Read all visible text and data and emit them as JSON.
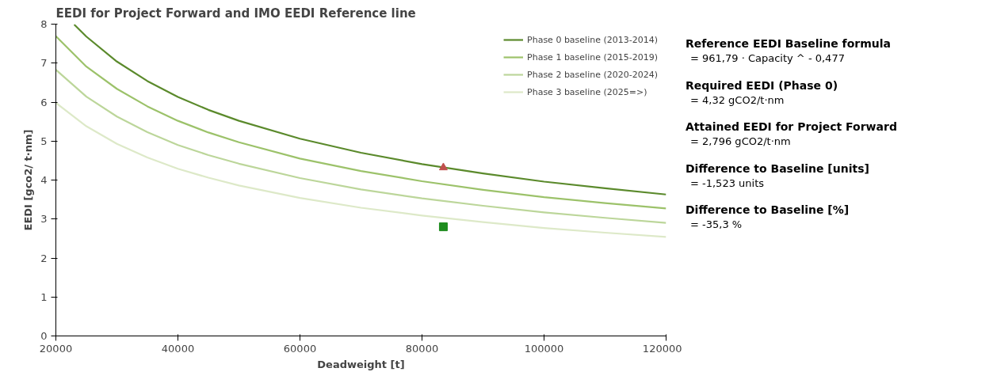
{
  "chart_data": {
    "type": "line",
    "title": "EEDI for Project Forward and IMO EEDI Reference line",
    "xlabel": "Deadweight [t]",
    "ylabel": "EEDI [gco2/ t·nm]",
    "xlim": [
      20000,
      120000
    ],
    "ylim": [
      0,
      8
    ],
    "xticks": [
      20000,
      40000,
      60000,
      80000,
      100000,
      120000
    ],
    "yticks": [
      0,
      1,
      2,
      3,
      4,
      5,
      6,
      7,
      8
    ],
    "grid": false,
    "legend": "top right",
    "series": [
      {
        "name": "Phase 0 baseline (2013-2014)",
        "color": "#5b8a2c",
        "x": [
          23000,
          25000,
          30000,
          35000,
          40000,
          45000,
          50000,
          60000,
          70000,
          80000,
          90000,
          100000,
          110000,
          120000
        ],
        "values": [
          7.99,
          7.68,
          7.04,
          6.54,
          6.13,
          5.8,
          5.52,
          5.06,
          4.7,
          4.41,
          4.17,
          3.96,
          3.79,
          3.63
        ]
      },
      {
        "name": "Phase 1 baseline (2015-2019)",
        "color": "#9cc26a",
        "x": [
          20000,
          25000,
          30000,
          35000,
          40000,
          45000,
          50000,
          60000,
          70000,
          80000,
          90000,
          100000,
          110000,
          120000
        ],
        "values": [
          7.69,
          6.91,
          6.34,
          5.89,
          5.52,
          5.22,
          4.97,
          4.55,
          4.23,
          3.97,
          3.75,
          3.56,
          3.41,
          3.27
        ]
      },
      {
        "name": "Phase 2 baseline (2020-2024)",
        "color": "#bcd69a",
        "x": [
          20000,
          25000,
          30000,
          35000,
          40000,
          45000,
          50000,
          60000,
          70000,
          80000,
          90000,
          100000,
          110000,
          120000
        ],
        "values": [
          6.83,
          6.14,
          5.63,
          5.23,
          4.9,
          4.64,
          4.42,
          4.05,
          3.76,
          3.53,
          3.34,
          3.17,
          3.03,
          2.9
        ]
      },
      {
        "name": "Phase 3 baseline (2025=>)",
        "color": "#dde9c8",
        "x": [
          20000,
          25000,
          30000,
          35000,
          40000,
          45000,
          50000,
          60000,
          70000,
          80000,
          90000,
          100000,
          110000,
          120000
        ],
        "values": [
          5.98,
          5.38,
          4.93,
          4.58,
          4.29,
          4.06,
          3.86,
          3.54,
          3.29,
          3.09,
          2.92,
          2.77,
          2.65,
          2.54
        ]
      },
      {
        "type": "scatter",
        "marker": "triangle",
        "color": "#c0504d",
        "x": [
          83500
        ],
        "values": [
          4.32
        ]
      },
      {
        "type": "scatter",
        "marker": "square",
        "color": "#1e8c1e",
        "x": [
          83500
        ],
        "values": [
          2.8
        ]
      }
    ],
    "annotations": [
      "Reference EEDI Baseline formula",
      "= 961,79 · Capacity ^ - 0,477",
      "Required EEDI (Phase 0)",
      "= 4,32 gCO2/t·nm",
      "Attained EEDI for Project Forward",
      "= 2,796 gCO2/t·nm",
      "Difference to Baseline [units]",
      "= -1,523 units",
      "Difference to Baseline [%]",
      "= -35,3 %"
    ]
  }
}
